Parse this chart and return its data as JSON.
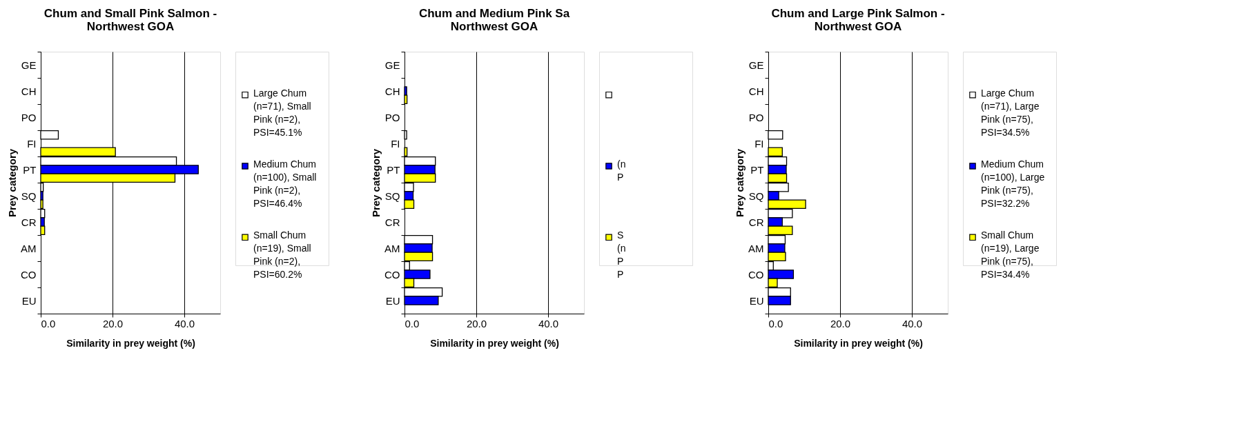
{
  "chart_data": [
    {
      "type": "bar",
      "orientation": "horizontal",
      "title": "Chum and Small Pink Salmon -\nNorthwest GOA",
      "xlabel": "Similarity in prey weight (%)",
      "ylabel": "Prey category",
      "categories": [
        "GE",
        "CH",
        "PO",
        "FI",
        "PT",
        "SQ",
        "CR",
        "AM",
        "CO",
        "EU"
      ],
      "series": [
        {
          "name": "Large Chum\n(n=71), Small\nPink (n=2),\nPSI=45.1%",
          "color": "#ffffff",
          "values": [
            null,
            null,
            null,
            4.9,
            37.8,
            0.7,
            1.1,
            null,
            null,
            null
          ]
        },
        {
          "name": "Medium Chum\n(n=100), Small\nPink (n=2),\nPSI=46.4%",
          "color": "#0000ff",
          "values": [
            null,
            null,
            null,
            null,
            43.9,
            0.6,
            1.0,
            null,
            null,
            null
          ]
        },
        {
          "name": "Small Chum\n(n=19), Small\nPink (n=2),\nPSI=60.2%",
          "color": "#ffff00",
          "values": [
            null,
            null,
            null,
            20.8,
            37.4,
            0.6,
            1.1,
            null,
            null,
            null
          ]
        }
      ],
      "xlim": [
        0,
        50
      ],
      "xticks": [
        {
          "value": 0,
          "label": "0.0"
        },
        {
          "value": 20,
          "label": "20.0"
        },
        {
          "value": 40,
          "label": "40.0"
        }
      ],
      "grid": "x",
      "legend": "right"
    },
    {
      "type": "bar",
      "orientation": "horizontal",
      "title": "Chum and Medium Pink Sa\n          Northwest GOA",
      "xlabel": "Similarity in prey weight (%)",
      "ylabel": "Prey category",
      "categories": [
        "GE",
        "CH",
        "PO",
        "FI",
        "PT",
        "SQ",
        "CR",
        "AM",
        "CO",
        "EU"
      ],
      "series": [
        {
          "color": "#ffffff",
          "values": [
            null,
            null,
            null,
            0.6,
            8.6,
            2.5,
            null,
            7.8,
            1.4,
            10.5
          ]
        },
        {
          "name": "(n\nP",
          "color": "#0000ff",
          "values": [
            null,
            0.6,
            null,
            null,
            8.5,
            2.4,
            null,
            7.7,
            7.1,
            9.4
          ]
        },
        {
          "name": "S\n(n\nP\nP",
          "color": "#ffff00",
          "values": [
            null,
            0.7,
            null,
            0.7,
            8.6,
            2.6,
            null,
            7.8,
            2.6,
            null
          ]
        }
      ],
      "xlim": [
        0,
        50
      ],
      "xticks": [
        {
          "value": 0,
          "label": "0.0"
        },
        {
          "value": 20,
          "label": "20.0"
        },
        {
          "value": 40,
          "label": "40.0"
        }
      ],
      "grid": "x",
      "legend": "right"
    },
    {
      "type": "bar",
      "orientation": "horizontal",
      "title": "Chum and Large Pink Salmon -\nNorthwest GOA",
      "xlabel": "Similarity in prey weight (%)",
      "ylabel": "Prey category",
      "categories": [
        "GE",
        "CH",
        "PO",
        "FI",
        "PT",
        "SQ",
        "CR",
        "AM",
        "CO",
        "EU"
      ],
      "series": [
        {
          "name": "Large Chum\n(n=71), Large\nPink (n=75),\nPSI=34.5%",
          "color": "#ffffff",
          "values": [
            null,
            null,
            null,
            4.0,
            5.1,
            5.6,
            6.7,
            4.7,
            1.4,
            6.2
          ]
        },
        {
          "name": "Medium Chum\n(n=100), Large\nPink (n=75),\nPSI=32.2%",
          "color": "#0000ff",
          "values": [
            null,
            null,
            null,
            null,
            5.0,
            2.9,
            3.9,
            4.6,
            7.0,
            6.2
          ]
        },
        {
          "name": "Small Chum\n(n=19), Large\nPink (n=75),\nPSI=34.4%",
          "color": "#ffff00",
          "values": [
            null,
            null,
            null,
            3.9,
            5.1,
            10.4,
            6.7,
            4.8,
            2.5,
            null
          ]
        }
      ],
      "xlim": [
        0,
        50
      ],
      "xticks": [
        {
          "value": 0,
          "label": "0.0"
        },
        {
          "value": 20,
          "label": "20.0"
        },
        {
          "value": 40,
          "label": "40.0"
        }
      ],
      "grid": "x",
      "legend": "right"
    }
  ]
}
